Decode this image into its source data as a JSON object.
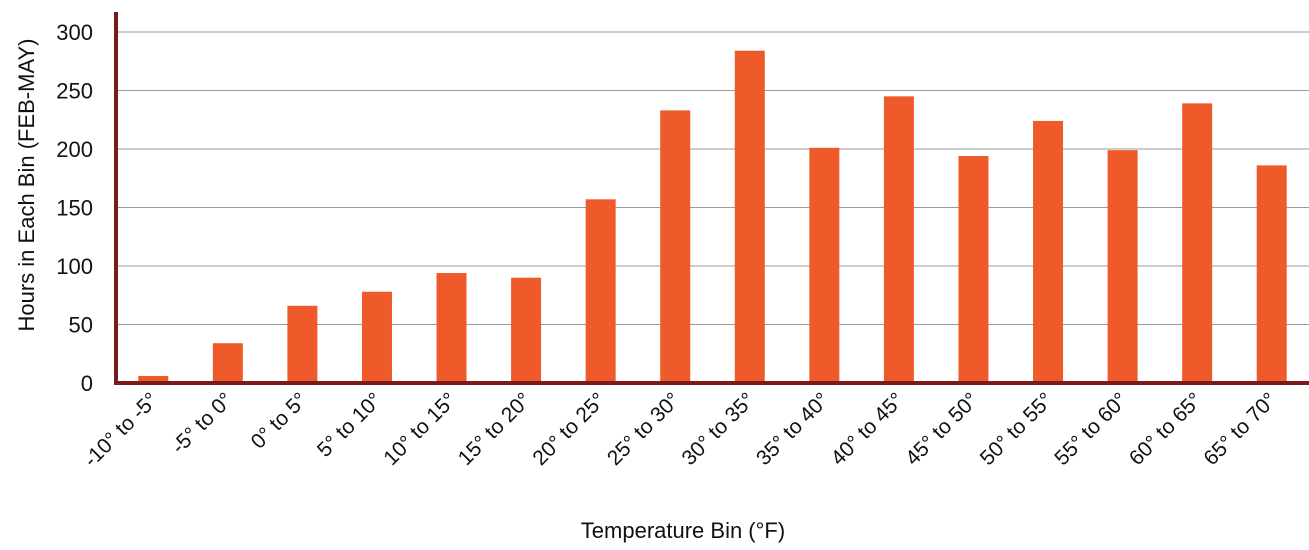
{
  "chart_data": {
    "type": "bar",
    "title": "",
    "xlabel": "Temperature Bin (°F)",
    "ylabel": "Hours in Each Bin (FEB-MAY)",
    "ylim": [
      0,
      300
    ],
    "yticks": [
      0,
      50,
      100,
      150,
      200,
      250,
      300
    ],
    "grid": "horizontal",
    "legend": "none",
    "categories": [
      "-10° to -5°",
      "-5° to 0°",
      "0° to 5°",
      "5° to 10°",
      "10° to 15°",
      "15° to 20°",
      "20° to 25°",
      "25° to 30°",
      "30° to 35°",
      "35° to 40°",
      "40° to 45°",
      "45° to 50°",
      "50° to 55°",
      "55° to 60°",
      "60° to 65°",
      "65° to 70°"
    ],
    "values": [
      6,
      34,
      66,
      78,
      94,
      90,
      157,
      233,
      284,
      201,
      245,
      194,
      224,
      199,
      239,
      186
    ],
    "colors": {
      "bar": "#ef5a2a",
      "axis": "#7a1a1a",
      "grid": "#9a9a9a"
    }
  }
}
